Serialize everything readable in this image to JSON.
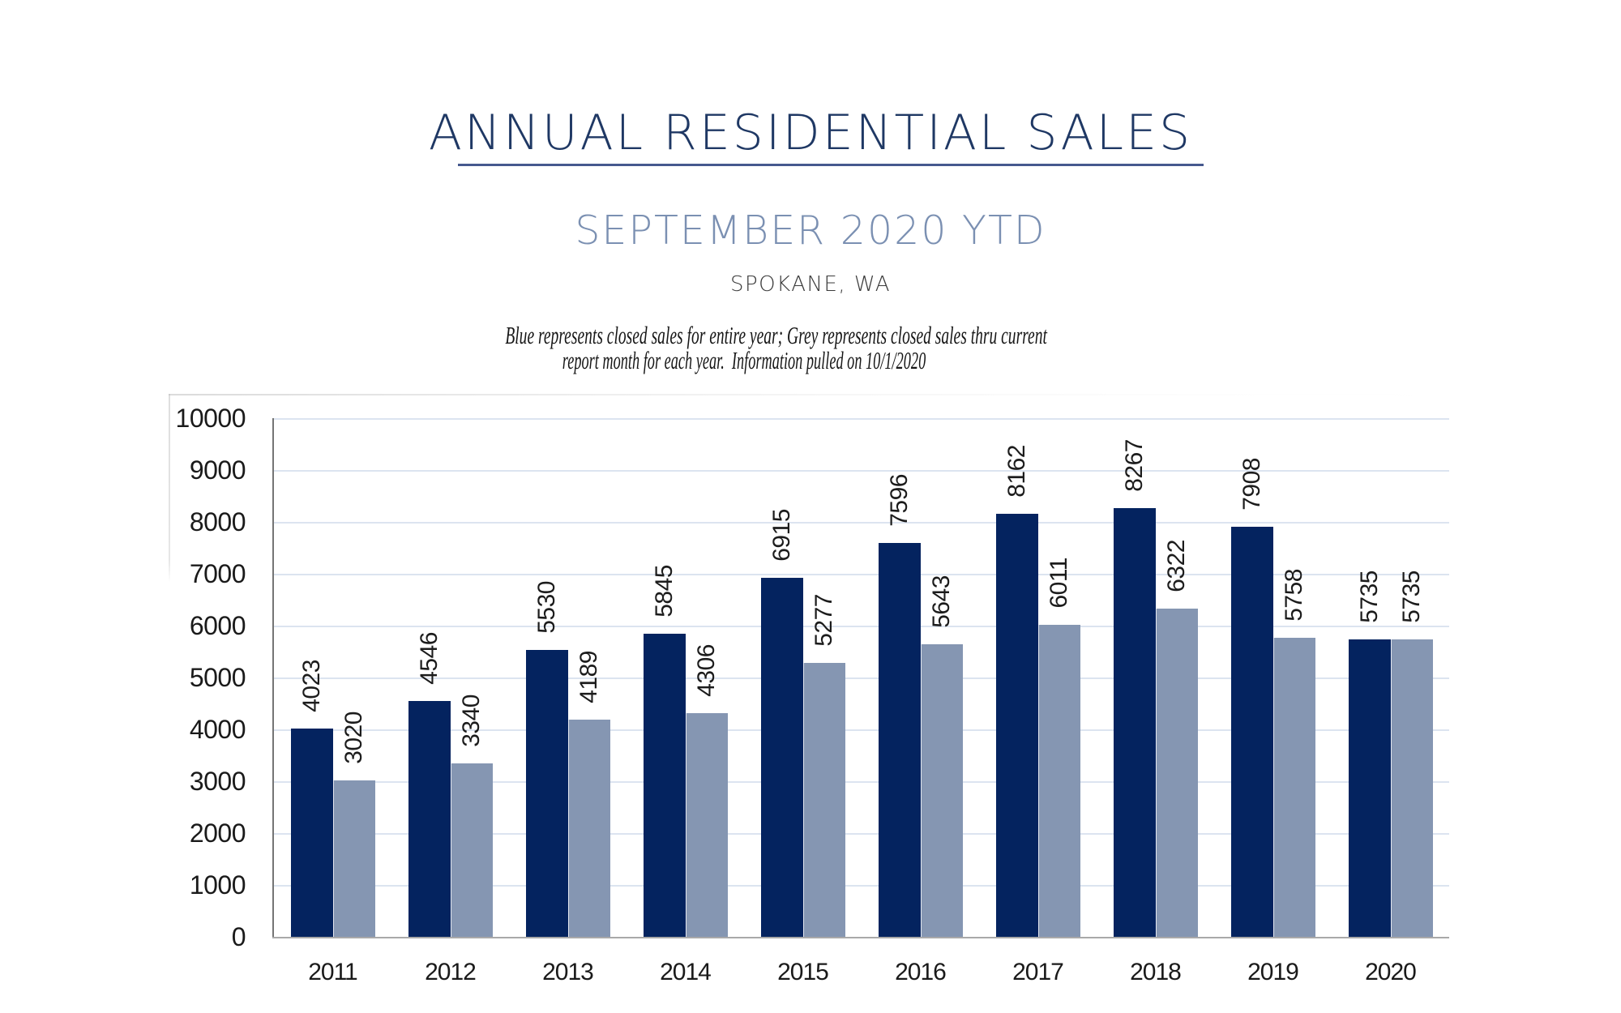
{
  "header": {
    "title": "ANNUAL RESIDENTIAL SALES",
    "subtitle": "SEPTEMBER 2020 YTD",
    "location": "SPOKANE, WA",
    "note_line1": "Blue represents closed sales for entire year; Grey represents closed sales thru current",
    "note_line2": "report month for each year.  Information pulled on 10/1/2020"
  },
  "chart_data": {
    "type": "bar",
    "title": "",
    "xlabel": "",
    "ylabel": "",
    "categories": [
      "2011",
      "2012",
      "2013",
      "2014",
      "2015",
      "2016",
      "2017",
      "2018",
      "2019",
      "2020"
    ],
    "series": [
      {
        "name": "Closed sales for entire year",
        "color": "#04235f",
        "values": [
          4023,
          4546,
          5530,
          5845,
          6915,
          7596,
          8162,
          8267,
          7908,
          5735
        ]
      },
      {
        "name": "Closed sales thru current report month",
        "color": "#8596b2",
        "values": [
          3020,
          3340,
          4189,
          4306,
          5277,
          5643,
          6011,
          6322,
          5758,
          5735
        ]
      }
    ],
    "ylim": [
      0,
      10000
    ],
    "ytick_interval": 1000,
    "yticks": [
      "0",
      "1000",
      "2000",
      "3000",
      "4000",
      "5000",
      "6000",
      "7000",
      "8000",
      "9000",
      "10000"
    ],
    "grid": "horizontal",
    "legend_position": "none",
    "data_labels": "rotated-90-outside-end"
  },
  "colors": {
    "title": "#1f3864",
    "title_rule": "#3d5485",
    "subtitle": "#7e93b5",
    "location": "#3b3b3b",
    "note": "#161616",
    "gridline": "#dce4f0",
    "axis_x": "#a9a9a9",
    "axis_y": "#757575",
    "series_blue": "#04235f",
    "series_grey": "#8596b2",
    "background": "#ffffff"
  }
}
